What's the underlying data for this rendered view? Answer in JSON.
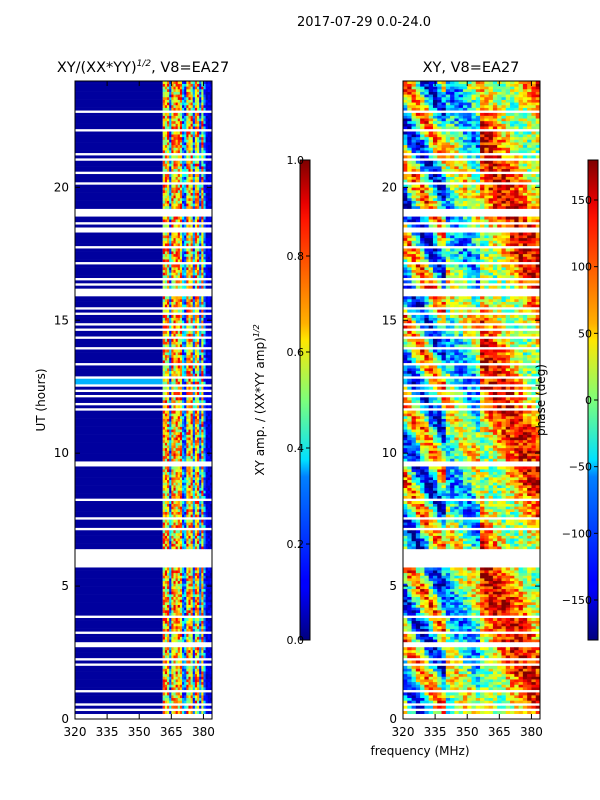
{
  "suptitle": "2017-07-29 0.0-24.0",
  "figure_xlabel": "frequency (MHz)",
  "chart_data": [
    {
      "type": "heatmap",
      "title_main": "XY/(XX*YY)",
      "title_sup": "1/2",
      "title_rest": ", V8=EA27",
      "ylabel": "UT (hours)",
      "xlim": [
        320,
        384
      ],
      "ylim": [
        0,
        24
      ],
      "xticks": [
        "320",
        "335",
        "350",
        "365",
        "380"
      ],
      "xtick_values": [
        320,
        335,
        350,
        365,
        380
      ],
      "yticks": [
        "0",
        "5",
        "10",
        "15",
        "20"
      ],
      "ytick_values": [
        0,
        5,
        10,
        15,
        20
      ],
      "colorbar": {
        "label_main": "XY amp. / (XX*YY amp)",
        "label_sup": "1/2",
        "range": [
          0.0,
          1.0
        ],
        "ticks": [
          "0.0",
          "0.2",
          "0.4",
          "0.6",
          "0.8",
          "1.0"
        ],
        "tick_values": [
          0.0,
          0.2,
          0.4,
          0.6,
          0.8,
          1.0
        ],
        "colormap": "jet"
      },
      "bright_channels_mhz": [
        [
          361,
          364
        ],
        [
          365,
          368
        ],
        [
          368,
          370
        ],
        [
          372,
          375
        ],
        [
          376,
          378
        ],
        [
          379,
          380
        ]
      ]
    },
    {
      "type": "heatmap",
      "title": "XY, V8=EA27",
      "xlim": [
        320,
        384
      ],
      "ylim": [
        0,
        24
      ],
      "xticks": [
        "320",
        "335",
        "350",
        "365",
        "380"
      ],
      "xtick_values": [
        320,
        335,
        350,
        365,
        380
      ],
      "yticks": [
        "0",
        "5",
        "10",
        "15",
        "20"
      ],
      "ytick_values": [
        0,
        5,
        10,
        15,
        20
      ],
      "colorbar": {
        "label": "phase (deg)",
        "range": [
          -180,
          180
        ],
        "ticks": [
          "−150",
          "−100",
          "−50",
          "0",
          "50",
          "100",
          "150"
        ],
        "tick_values": [
          -150,
          -100,
          -50,
          0,
          50,
          100,
          150
        ],
        "colormap": "jet"
      }
    }
  ]
}
